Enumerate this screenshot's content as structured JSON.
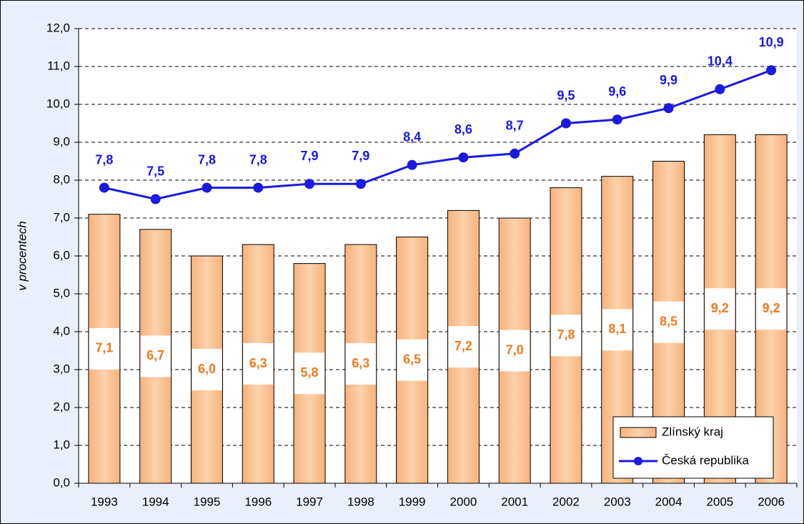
{
  "chart_data": {
    "type": "bar",
    "y_label": "v procentech",
    "categories": [
      "1993",
      "1994",
      "1995",
      "1996",
      "1997",
      "1998",
      "1999",
      "2000",
      "2001",
      "2002",
      "2003",
      "2004",
      "2005",
      "2006"
    ],
    "series": [
      {
        "name": "Zlínský kraj",
        "type": "bar",
        "color": "#fbc596",
        "values": [
          7.1,
          6.7,
          6.0,
          6.3,
          5.8,
          6.3,
          6.5,
          7.2,
          7.0,
          7.8,
          8.1,
          8.5,
          9.2,
          9.2
        ],
        "value_labels": [
          "7,1",
          "6,7",
          "6,0",
          "6,3",
          "5,8",
          "6,3",
          "6,5",
          "7,2",
          "7,0",
          "7,8",
          "8,1",
          "8,5",
          "9,2",
          "9,2"
        ]
      },
      {
        "name": "Česká republika",
        "type": "line",
        "color": "#1a1ae0",
        "values": [
          7.8,
          7.5,
          7.8,
          7.8,
          7.9,
          7.9,
          8.4,
          8.6,
          8.7,
          9.5,
          9.6,
          9.9,
          10.4,
          10.9
        ],
        "value_labels": [
          "7,8",
          "7,5",
          "7,8",
          "7,8",
          "7,9",
          "7,9",
          "8,4",
          "8,6",
          "8,7",
          "9,5",
          "9,6",
          "9,9",
          "10,4",
          "10,9"
        ]
      }
    ],
    "ylim": [
      0,
      12
    ],
    "yticks": [
      {
        "value": 0,
        "label": "0,0"
      },
      {
        "value": 1,
        "label": "1,0"
      },
      {
        "value": 2,
        "label": "2,0"
      },
      {
        "value": 3,
        "label": "3,0"
      },
      {
        "value": 4,
        "label": "4,0"
      },
      {
        "value": 5,
        "label": "5,0"
      },
      {
        "value": 6,
        "label": "6,0"
      },
      {
        "value": 7,
        "label": "7,0"
      },
      {
        "value": 8,
        "label": "8,0"
      },
      {
        "value": 9,
        "label": "9,0"
      },
      {
        "value": 10,
        "label": "10,0"
      },
      {
        "value": 11,
        "label": "11,0"
      },
      {
        "value": 12,
        "label": "12,0"
      }
    ],
    "grid": true,
    "legend": "bottom-right"
  }
}
